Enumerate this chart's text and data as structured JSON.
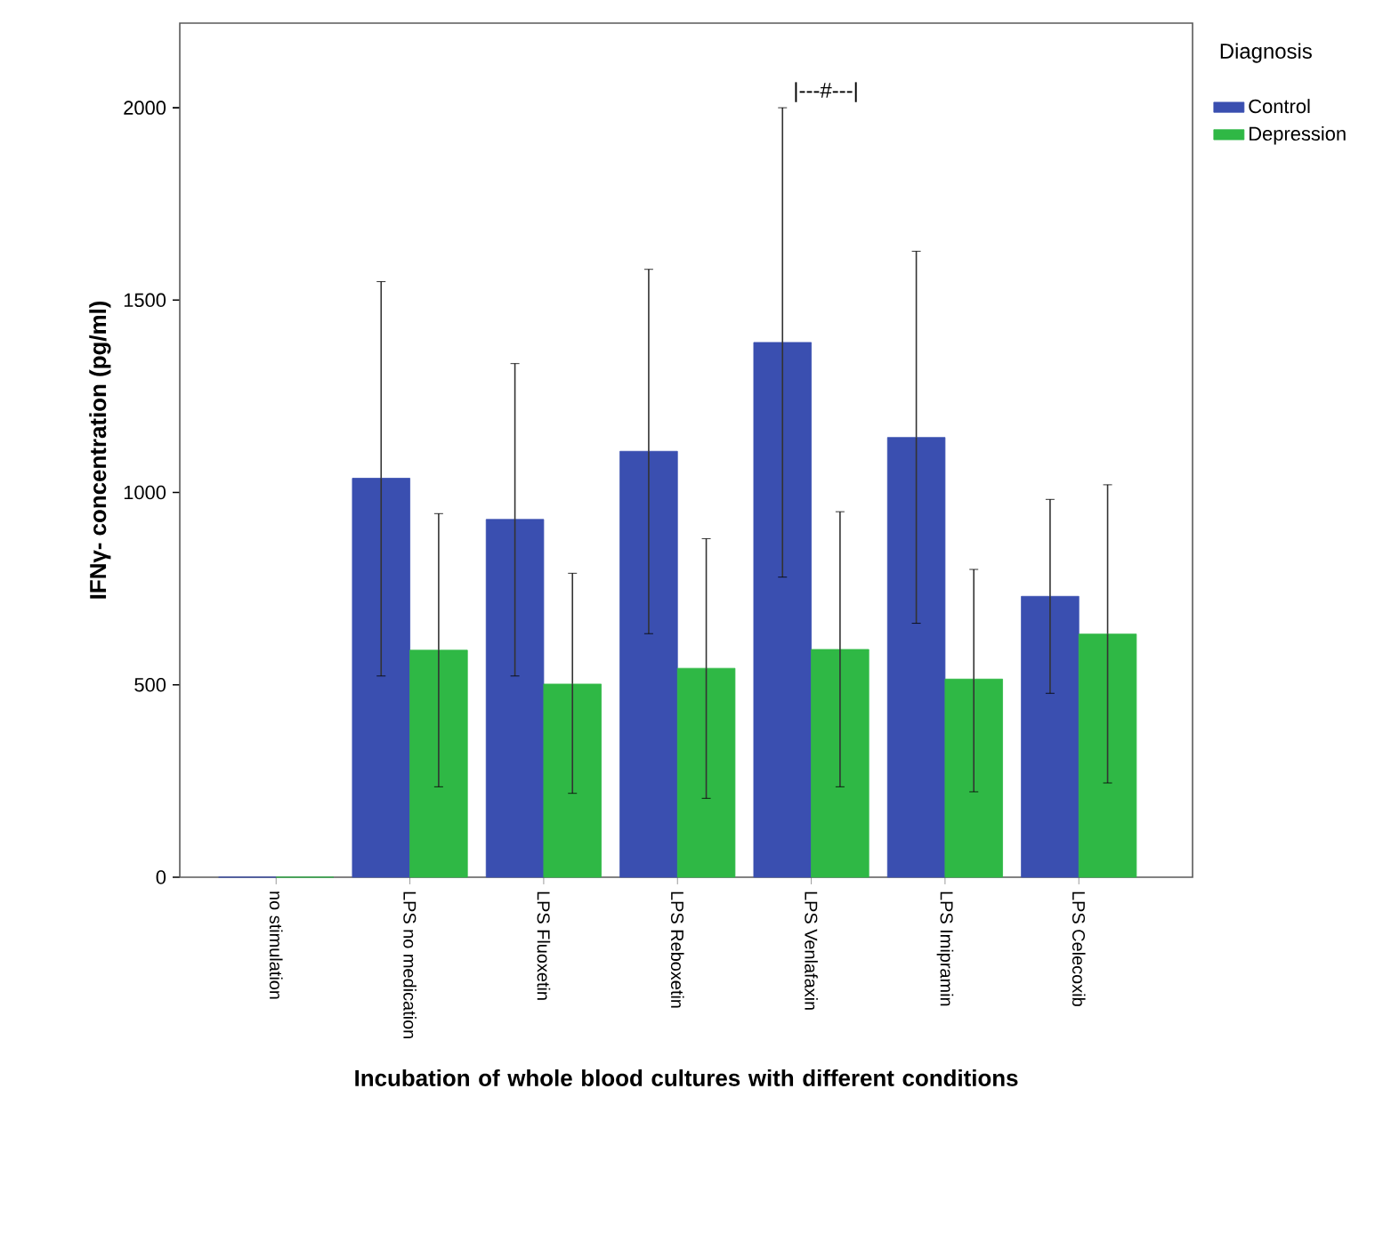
{
  "chart_data": {
    "type": "bar",
    "xlabel": "Incubation of whole blood cultures with different conditions",
    "ylabel": "IFNγ- concentration (pg/ml)",
    "legend_title": "Diagnosis",
    "categories": [
      "no stimulation",
      "LPS no medication",
      "LPS Fluoxetin",
      "LPS Reboxetin",
      "LPS Venlafaxin",
      "LPS Imipramin",
      "LPS Celecoxib"
    ],
    "series": [
      {
        "name": "Control",
        "color": "#3a4fb0",
        "values": [
          0,
          1037,
          930,
          1107,
          1390,
          1143,
          730
        ],
        "errors": [
          null,
          [
            523,
            1548
          ],
          [
            523,
            1335
          ],
          [
            633,
            1580
          ],
          [
            780,
            2000
          ],
          [
            660,
            1627
          ],
          [
            478,
            982
          ]
        ]
      },
      {
        "name": "Depression",
        "color": "#2fb845",
        "values": [
          0,
          590,
          502,
          543,
          592,
          515,
          632
        ],
        "errors": [
          null,
          [
            235,
            945
          ],
          [
            218,
            790
          ],
          [
            205,
            880
          ],
          [
            235,
            950
          ],
          [
            222,
            800
          ],
          [
            245,
            1020
          ]
        ]
      }
    ],
    "annotations": [
      "|---#---|"
    ],
    "ylim": [
      0,
      2220
    ],
    "yticks": [
      0,
      500,
      1000,
      1500,
      2000
    ],
    "grid": false,
    "legend": "top right"
  }
}
